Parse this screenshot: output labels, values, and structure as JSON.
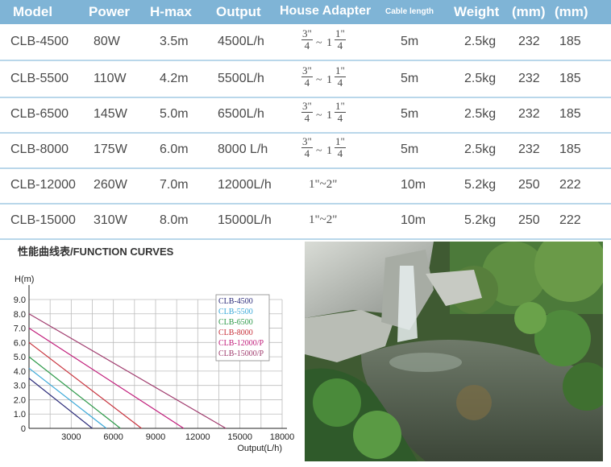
{
  "table": {
    "headers": [
      "Model",
      "Power",
      "H-max",
      "Output",
      "House Adapter",
      "Cable length",
      "Weight",
      "(mm)",
      "(mm)"
    ],
    "rows": [
      {
        "model": "CLB-4500",
        "power": "80W",
        "hmax": "3.5m",
        "output": "4500L/h",
        "adapter": {
          "type": "fraction",
          "a_num": "3\"",
          "a_den": "4",
          "tilde": "~",
          "b_whole": "1",
          "b_num": "1\"",
          "b_den": "4"
        },
        "cable": "5m",
        "weight": "2.5kg",
        "dim1": "232",
        "dim2": "185"
      },
      {
        "model": "CLB-5500",
        "power": "110W",
        "hmax": "4.2m",
        "output": "5500L/h",
        "adapter": {
          "type": "fraction",
          "a_num": "3\"",
          "a_den": "4",
          "tilde": "~",
          "b_whole": "1",
          "b_num": "1\"",
          "b_den": "4"
        },
        "cable": "5m",
        "weight": "2.5kg",
        "dim1": "232",
        "dim2": "185"
      },
      {
        "model": "CLB-6500",
        "power": "145W",
        "hmax": "5.0m",
        "output": "6500L/h",
        "adapter": {
          "type": "fraction",
          "a_num": "3\"",
          "a_den": "4",
          "tilde": "~",
          "b_whole": "1",
          "b_num": "1\"",
          "b_den": "4"
        },
        "cable": "5m",
        "weight": "2.5kg",
        "dim1": "232",
        "dim2": "185"
      },
      {
        "model": "CLB-8000",
        "power": "175W",
        "hmax": "6.0m",
        "output": "8000 L/h",
        "adapter": {
          "type": "fraction",
          "a_num": "3\"",
          "a_den": "4",
          "tilde": "~",
          "b_whole": "1",
          "b_num": "1\"",
          "b_den": "4"
        },
        "cable": "5m",
        "weight": "2.5kg",
        "dim1": "232",
        "dim2": "185"
      },
      {
        "model": "CLB-12000",
        "power": "260W",
        "hmax": "7.0m",
        "output": "12000L/h",
        "adapter": {
          "type": "text",
          "text": "1\"~2\""
        },
        "cable": "10m",
        "weight": "5.2kg",
        "dim1": "250",
        "dim2": "222"
      },
      {
        "model": "CLB-15000",
        "power": "310W",
        "hmax": "8.0m",
        "output": "15000L/h",
        "adapter": {
          "type": "text",
          "text": "1\"~2\""
        },
        "cable": "10m",
        "weight": "5.2kg",
        "dim1": "250",
        "dim2": "222"
      }
    ]
  },
  "chart_data": {
    "type": "line",
    "title": "性能曲线表/FUNCTION CURVES",
    "ylabel": "H(m)",
    "xlabel": "Output(L/h)",
    "xlim": [
      0,
      18000
    ],
    "ylim": [
      0,
      9.0
    ],
    "x_ticks": [
      "0",
      "3000",
      "6000",
      "9000",
      "12000",
      "15000",
      "18000"
    ],
    "y_ticks": [
      "0",
      "1.0",
      "2.0",
      "3.0",
      "4.0",
      "5.0",
      "6.0",
      "7.0",
      "8.0",
      "9.0"
    ],
    "legend_position": "top-right",
    "grid": true,
    "series": [
      {
        "name": "CLB-4500",
        "color": "#2c2c7a",
        "points": [
          [
            0,
            3.5
          ],
          [
            4500,
            0
          ]
        ]
      },
      {
        "name": "CLB-5500",
        "color": "#3aa8d8",
        "points": [
          [
            0,
            4.2
          ],
          [
            5500,
            0
          ]
        ]
      },
      {
        "name": "CLB-6500",
        "color": "#2e9a4a",
        "points": [
          [
            0,
            5.0
          ],
          [
            6500,
            0
          ]
        ]
      },
      {
        "name": "CLB-8000",
        "color": "#c8323c",
        "points": [
          [
            0,
            6.0
          ],
          [
            8000,
            0
          ]
        ]
      },
      {
        "name": "CLB-12000/P",
        "color": "#c01c7a",
        "points": [
          [
            0,
            7.0
          ],
          [
            11000,
            0
          ]
        ]
      },
      {
        "name": "CLB-15000/P",
        "color": "#a03c6e",
        "points": [
          [
            0,
            8.0
          ],
          [
            14000,
            0
          ]
        ]
      }
    ]
  },
  "photo": {
    "icon": "garden-pond-waterfall-photo"
  },
  "colors": {
    "header_bg": "#7fb4d6",
    "row_divider": "#b9d7ea",
    "text": "#4a4a4a"
  }
}
